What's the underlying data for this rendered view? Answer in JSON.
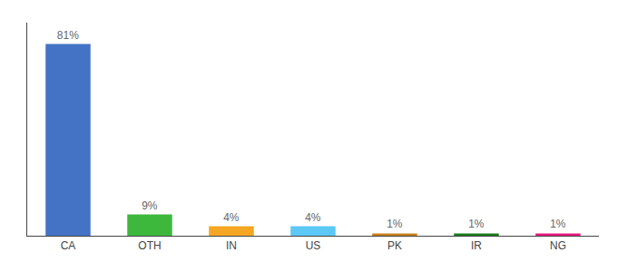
{
  "chart_data": {
    "type": "bar",
    "categories": [
      "CA",
      "OTH",
      "IN",
      "US",
      "PK",
      "IR",
      "NG"
    ],
    "values": [
      81,
      9,
      4,
      4,
      1,
      1,
      1
    ],
    "value_labels": [
      "81%",
      "9%",
      "4%",
      "4%",
      "1%",
      "1%",
      "1%"
    ],
    "colors": [
      "#4472c4",
      "#3db83d",
      "#f5a623",
      "#5bc8f5",
      "#c87e1a",
      "#1a7a1a",
      "#e8187c"
    ],
    "ylim": [
      0,
      90
    ],
    "grid": false,
    "data_labels": true,
    "tick_labels": "x"
  }
}
